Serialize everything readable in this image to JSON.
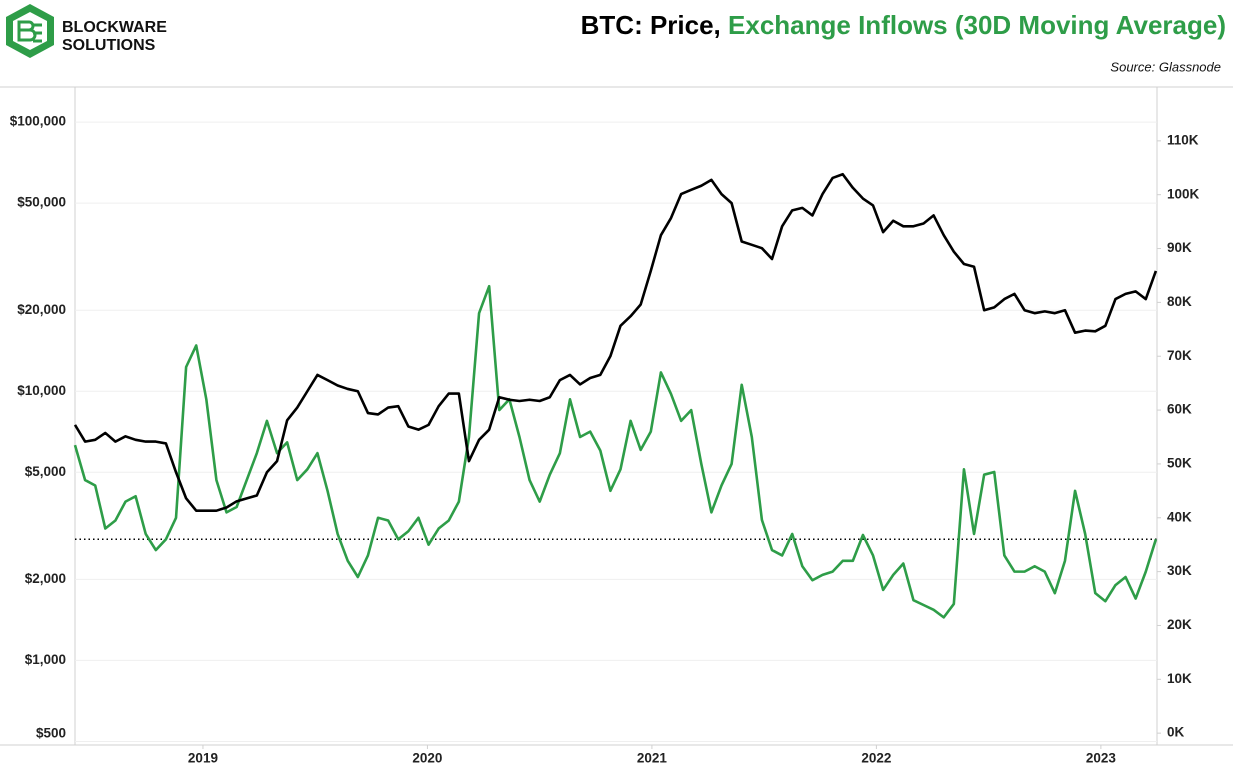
{
  "chart_data": {
    "type": "line",
    "brand": [
      "BLOCKWARE",
      "SOLUTIONS"
    ],
    "title_parts": [
      {
        "text": "BTC: Price,",
        "color": "#000000"
      },
      {
        "text": "Exchange Inflows (30D Moving Average)",
        "color": "#2e9d48"
      }
    ],
    "source": "Source: Glassnode",
    "x": [
      2018.43,
      2018.475,
      2018.52,
      2018.565,
      2018.61,
      2018.655,
      2018.7,
      2018.745,
      2018.79,
      2018.835,
      2018.88,
      2018.925,
      2018.97,
      2019.015,
      2019.06,
      2019.105,
      2019.15,
      2019.195,
      2019.24,
      2019.285,
      2019.33,
      2019.375,
      2019.42,
      2019.465,
      2019.51,
      2019.555,
      2019.6,
      2019.645,
      2019.69,
      2019.735,
      2019.78,
      2019.825,
      2019.87,
      2019.915,
      2019.96,
      2020.005,
      2020.05,
      2020.095,
      2020.14,
      2020.185,
      2020.23,
      2020.275,
      2020.32,
      2020.365,
      2020.41,
      2020.455,
      2020.5,
      2020.545,
      2020.59,
      2020.635,
      2020.68,
      2020.725,
      2020.77,
      2020.815,
      2020.86,
      2020.905,
      2020.95,
      2020.995,
      2021.04,
      2021.085,
      2021.13,
      2021.175,
      2021.22,
      2021.265,
      2021.31,
      2021.355,
      2021.4,
      2021.445,
      2021.49,
      2021.535,
      2021.58,
      2021.625,
      2021.67,
      2021.715,
      2021.76,
      2021.805,
      2021.85,
      2021.895,
      2021.94,
      2021.985,
      2022.03,
      2022.075,
      2022.12,
      2022.165,
      2022.21,
      2022.255,
      2022.3,
      2022.345,
      2022.39,
      2022.435,
      2022.48,
      2022.525,
      2022.57,
      2022.615,
      2022.66,
      2022.705,
      2022.75,
      2022.795,
      2022.84,
      2022.885,
      2022.93,
      2022.975,
      2023.02,
      2023.065,
      2023.11,
      2023.155,
      2023.2,
      2023.245
    ],
    "series": [
      {
        "name": "Price",
        "color": "#000000",
        "axis": "y",
        "values": [
          7500,
          6500,
          6600,
          7000,
          6500,
          6800,
          6600,
          6500,
          6500,
          6400,
          5000,
          4000,
          3600,
          3600,
          3600,
          3700,
          3900,
          4000,
          4100,
          5000,
          5500,
          7800,
          8700,
          10000,
          11500,
          11000,
          10500,
          10200,
          10000,
          8300,
          8200,
          8700,
          8800,
          7400,
          7200,
          7500,
          8800,
          9800,
          9800,
          5500,
          6600,
          7200,
          9500,
          9300,
          9200,
          9300,
          9200,
          9500,
          11000,
          11500,
          10600,
          11200,
          11500,
          13500,
          17500,
          19000,
          21000,
          28000,
          38000,
          44000,
          54000,
          56000,
          58000,
          61000,
          54000,
          50000,
          36000,
          35000,
          34000,
          31000,
          41000,
          47000,
          48000,
          45000,
          54000,
          62000,
          64000,
          57000,
          52000,
          49000,
          39000,
          43000,
          41000,
          41000,
          42000,
          45000,
          38000,
          33000,
          29700,
          29000,
          20000,
          20500,
          22000,
          23000,
          20000,
          19500,
          19800,
          19500,
          20000,
          16500,
          16800,
          16700,
          17500,
          22000,
          23000,
          23500,
          22000,
          28000
        ]
      },
      {
        "name": "Exchange Inflows (30D Moving Average)",
        "color": "#2e9d48",
        "axis": "y2",
        "values": [
          53500,
          47000,
          46000,
          38000,
          39500,
          43000,
          44000,
          37000,
          34000,
          36000,
          40000,
          68000,
          72000,
          62000,
          47000,
          41000,
          42000,
          47000,
          52000,
          58000,
          52000,
          54000,
          47000,
          49000,
          52000,
          45000,
          37000,
          32000,
          29000,
          33000,
          40000,
          39500,
          36000,
          37500,
          40000,
          35000,
          38000,
          39500,
          43000,
          55000,
          78000,
          83000,
          60000,
          62000,
          55000,
          47000,
          43000,
          48000,
          52000,
          62000,
          55000,
          56000,
          52500,
          45000,
          49000,
          58000,
          52600,
          56000,
          67000,
          63000,
          58000,
          60000,
          50000,
          41000,
          46000,
          50000,
          64700,
          55000,
          39600,
          34000,
          33000,
          37000,
          31000,
          28400,
          29400,
          30000,
          32000,
          32000,
          36800,
          33000,
          26600,
          29400,
          31500,
          24700,
          23800,
          22900,
          21500,
          24000,
          49000,
          37000,
          48000,
          48500,
          33000,
          30000,
          30000,
          31000,
          30000,
          26000,
          32000,
          45000,
          37000,
          26000,
          24500,
          27500,
          29000,
          25000,
          30000,
          36000
        ]
      }
    ],
    "reference_line": {
      "value": 36000,
      "axis": "y2",
      "style": "dotted"
    },
    "xlim": [
      2018.43,
      2023.25
    ],
    "xticks": [
      2019,
      2020,
      2021,
      2022,
      2023
    ],
    "ylog": true,
    "ylim": [
      485,
      135000
    ],
    "yticks": [
      {
        "value": 500,
        "label": "$500"
      },
      {
        "value": 1000,
        "label": "$1,000"
      },
      {
        "value": 2000,
        "label": "$2,000"
      },
      {
        "value": 5000,
        "label": "$5,000"
      },
      {
        "value": 10000,
        "label": "$10,000"
      },
      {
        "value": 20000,
        "label": "$20,000"
      },
      {
        "value": 50000,
        "label": "$50,000"
      },
      {
        "value": 100000,
        "label": "$100,000"
      }
    ],
    "y2lim": [
      -2200,
      120000
    ],
    "y2ticks": [
      {
        "value": 0,
        "label": "0K"
      },
      {
        "value": 10000,
        "label": "10K"
      },
      {
        "value": 20000,
        "label": "20K"
      },
      {
        "value": 30000,
        "label": "30K"
      },
      {
        "value": 40000,
        "label": "40K"
      },
      {
        "value": 50000,
        "label": "50K"
      },
      {
        "value": 60000,
        "label": "60K"
      },
      {
        "value": 70000,
        "label": "70K"
      },
      {
        "value": 80000,
        "label": "80K"
      },
      {
        "value": 90000,
        "label": "90K"
      },
      {
        "value": 100000,
        "label": "100K"
      },
      {
        "value": 110000,
        "label": "110K"
      }
    ],
    "grid": true
  }
}
